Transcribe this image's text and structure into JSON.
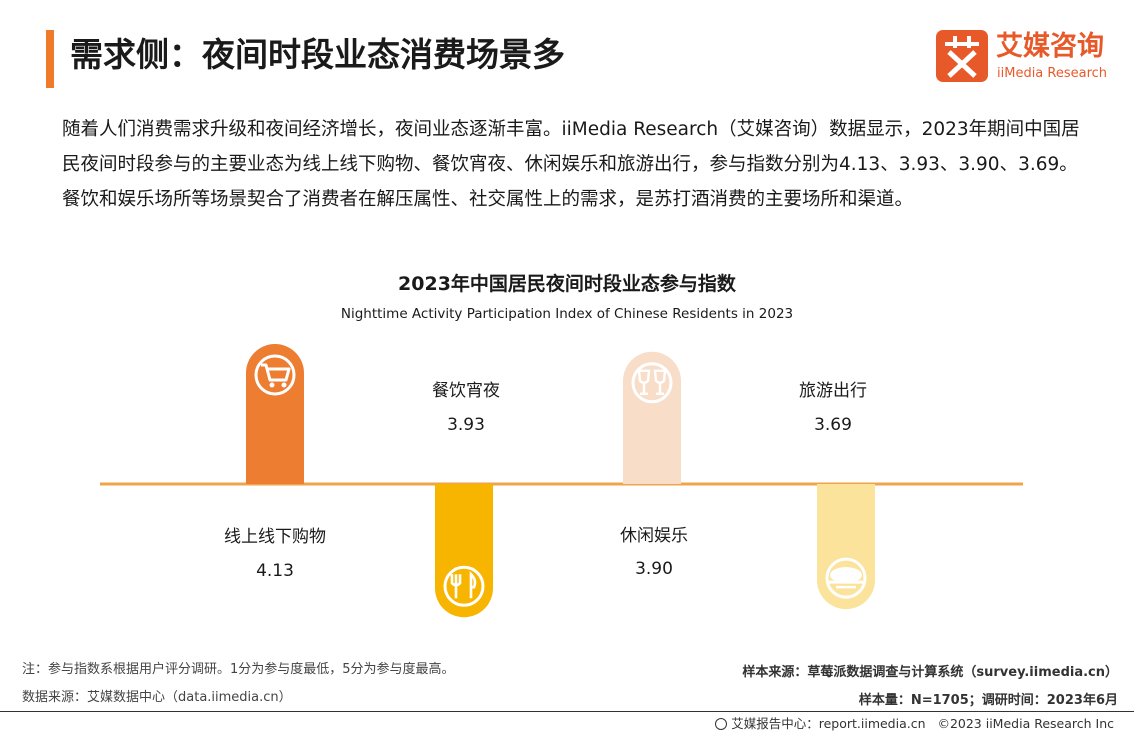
{
  "header": {
    "title": "需求侧：夜间时段业态消费场景多",
    "logo_cn": "艾媒咨询",
    "logo_en": "iiMedia Research"
  },
  "intro": "随着人们消费需求升级和夜间经济增长，夜间业态逐渐丰富。iiMedia Research（艾媒咨询）数据显示，2023年期间中国居民夜间时段参与的主要业态为线上线下购物、餐饮宵夜、休闲娱乐和旅游出行，参与指数分别为4.13、3.93、3.90、3.69。餐饮和娱乐场所等场景契合了消费者在解压属性、社交属性上的需求，是苏打酒消费的主要场所和渠道。",
  "chart_data": {
    "type": "bar",
    "title": "2023年中国居民夜间时段业态参与指数",
    "subtitle": "Nighttime Activity Participation Index of Chinese Residents in 2023",
    "categories": [
      "线上线下购物",
      "餐饮宵夜",
      "休闲娱乐",
      "旅游出行"
    ],
    "values": [
      4.13,
      3.93,
      3.9,
      3.69
    ],
    "colors": [
      "#ed7d31",
      "#f7b500",
      "#f8ddc9",
      "#fbe39b"
    ],
    "icons": [
      "shopping-cart-icon",
      "fork-knife-icon",
      "wine-glasses-icon",
      "airship-icon"
    ],
    "axis_color": "#f0a44a",
    "grid": false
  },
  "footer": {
    "note": "注：参与指数系根据用户评分调研。1分为参与度最低，5分为参与度最高。",
    "data_source": "数据来源：艾媒数据中心（data.iimedia.cn）",
    "sample_source": "样本来源：草莓派数据调查与计算系统（survey.iimedia.cn）",
    "sample_size": "样本量：N=1705；调研时间：2023年6月",
    "report_center": "艾媒报告中心：report.iimedia.cn",
    "copyright": "©2023  iiMedia Research  Inc"
  }
}
